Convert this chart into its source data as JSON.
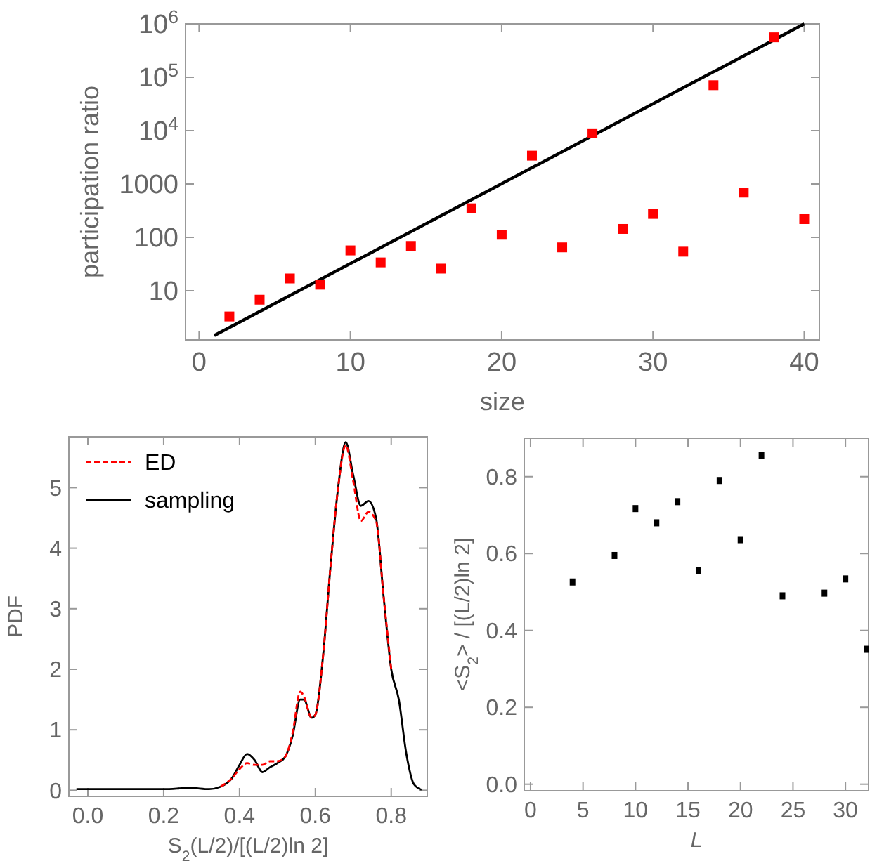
{
  "chart_data": [
    {
      "type": "scatter",
      "xlabel": "size",
      "ylabel": "participation ratio",
      "log": "y",
      "marker": "square",
      "grid": false,
      "xlim": [
        -0.9,
        41
      ],
      "ylim": [
        1.2,
        1000000
      ],
      "xticks": [
        0,
        10,
        20,
        30,
        40
      ],
      "yticks": [
        10,
        100,
        1000,
        {
          "value": 10000,
          "label": "10$^{4}$"
        },
        {
          "value": 100000,
          "label": "10$^{5}$"
        },
        {
          "value": 1000000,
          "label": "10$^{6}$"
        }
      ],
      "series": [
        {
          "color": "#ff0000",
          "x": [
            2,
            4,
            6,
            8,
            10,
            12,
            14,
            16,
            18,
            20,
            22,
            24,
            26,
            28,
            30,
            32,
            34,
            36,
            38,
            40
          ],
          "values": [
            3.3,
            6.8,
            17,
            13,
            57,
            34,
            69,
            26,
            350,
            112,
            3400,
            65,
            8900,
            144,
            275,
            54,
            71000,
            690,
            560000,
            220
          ]
        },
        {
          "type": "line",
          "marker": "none",
          "color": "#000000",
          "x": [
            1,
            40
          ],
          "values": [
            1.45,
            1000000
          ]
        }
      ]
    },
    {
      "type": "line",
      "xlabel": "S$_{2}$(L/2)/[(L/2)ln 2]",
      "ylabel": "PDF",
      "legend": "top left",
      "grid": false,
      "xlim": [
        -0.05,
        0.895
      ],
      "ylim": [
        -0.1,
        5.84
      ],
      "xticks": [
        {
          "value": 0,
          "label": "0.0"
        },
        0.2,
        0.4,
        0.6,
        0.8
      ],
      "yticks": [
        0,
        1,
        2,
        3,
        4,
        5
      ],
      "series": [
        {
          "name": "ED",
          "color": "#ff0000",
          "line_style": "dashed",
          "x": [
            0.35,
            0.38,
            0.4,
            0.42,
            0.44,
            0.46,
            0.48,
            0.5,
            0.52,
            0.54,
            0.56,
            0.57,
            0.59,
            0.6,
            0.62,
            0.64,
            0.66,
            0.68,
            0.7,
            0.72,
            0.74,
            0.76,
            0.78,
            0.8
          ],
          "values": [
            0.06,
            0.2,
            0.35,
            0.45,
            0.42,
            0.42,
            0.48,
            0.48,
            0.55,
            0.95,
            1.63,
            1.55,
            1.2,
            1.25,
            2.2,
            3.7,
            5.0,
            5.7,
            5.1,
            4.45,
            4.6,
            4.45,
            3.2,
            2.0
          ]
        },
        {
          "name": "sampling",
          "color": "#000000",
          "line_style": "solid",
          "x": [
            -0.03,
            0.2,
            0.27,
            0.32,
            0.35,
            0.38,
            0.4,
            0.42,
            0.44,
            0.46,
            0.48,
            0.5,
            0.52,
            0.54,
            0.56,
            0.57,
            0.59,
            0.6,
            0.62,
            0.64,
            0.66,
            0.68,
            0.7,
            0.72,
            0.74,
            0.76,
            0.78,
            0.8,
            0.82,
            0.84,
            0.86,
            0.88
          ],
          "values": [
            0.02,
            0.02,
            0.04,
            0.02,
            0.06,
            0.2,
            0.42,
            0.6,
            0.5,
            0.3,
            0.38,
            0.45,
            0.55,
            0.9,
            1.5,
            1.5,
            1.2,
            1.25,
            2.2,
            3.7,
            5.0,
            5.75,
            5.2,
            4.7,
            4.78,
            4.5,
            3.2,
            2.0,
            1.5,
            0.6,
            0.1,
            0.01
          ]
        }
      ]
    },
    {
      "type": "scatter",
      "xlabel": "L",
      "ylabel": "<S$_{2}$> / [(L/2)ln 2]",
      "marker": "square",
      "grid": false,
      "xlim": [
        -0.6,
        32.2
      ],
      "ylim": [
        -0.017,
        0.9
      ],
      "xticks": [
        0,
        5,
        10,
        15,
        20,
        25,
        30
      ],
      "yticks": [
        {
          "value": 0,
          "label": "0.0"
        },
        0.2,
        0.4,
        0.6,
        0.8
      ],
      "series": [
        {
          "color": "#000000",
          "x": [
            4,
            8,
            10,
            12,
            14,
            16,
            18,
            20,
            22,
            24,
            28,
            30,
            32
          ],
          "values": [
            0.526,
            0.595,
            0.717,
            0.68,
            0.735,
            0.556,
            0.79,
            0.636,
            0.856,
            0.49,
            0.497,
            0.534,
            0.351
          ]
        }
      ]
    }
  ]
}
